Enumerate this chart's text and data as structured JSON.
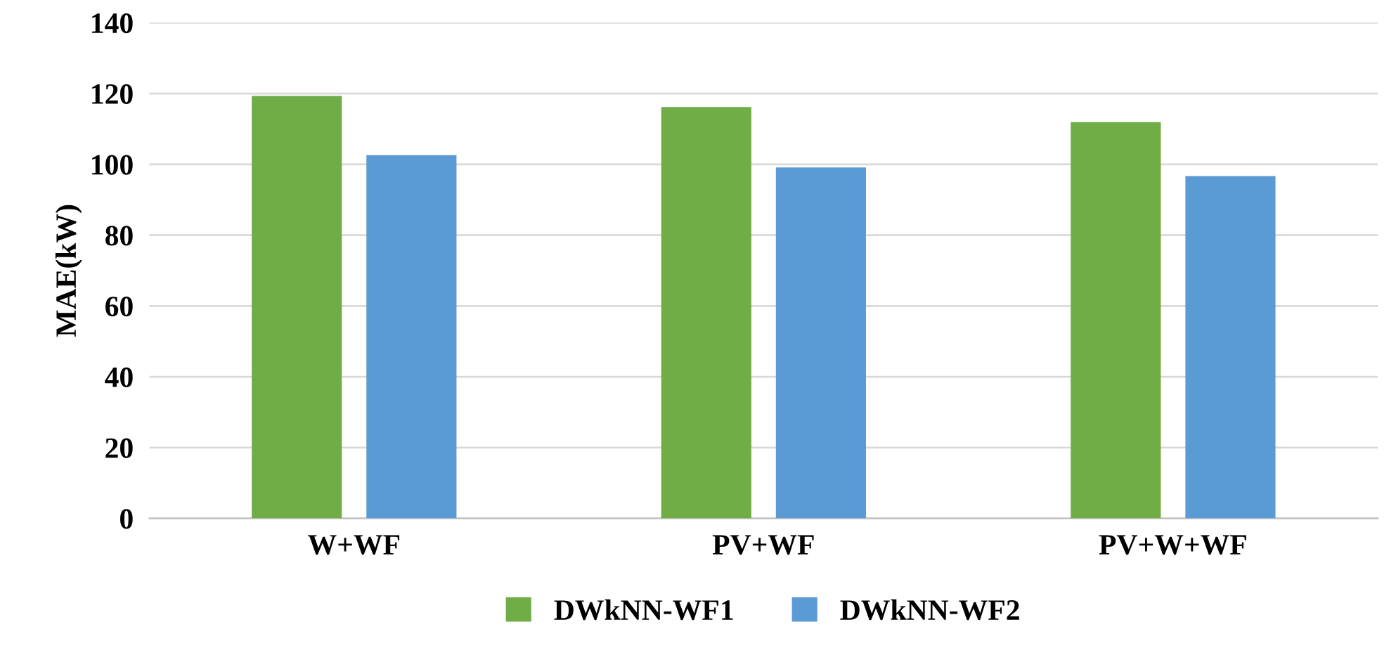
{
  "chart_data": {
    "type": "bar",
    "ylabel": "MAE(kW)",
    "categories": [
      "W+WF",
      "PV+WF",
      "PV+W+WF"
    ],
    "series": [
      {
        "name": "DWkNN-WF1",
        "color": "#70ad47",
        "values": [
          119.3,
          116.2,
          111.9
        ]
      },
      {
        "name": "DWkNN-WF2",
        "color": "#5b9bd5",
        "values": [
          102.6,
          99.1,
          96.7
        ]
      }
    ],
    "ylim": [
      0,
      140
    ],
    "yticks": [
      0,
      20,
      40,
      60,
      80,
      100,
      120,
      140
    ],
    "grid": "y",
    "legend": "bottom"
  }
}
